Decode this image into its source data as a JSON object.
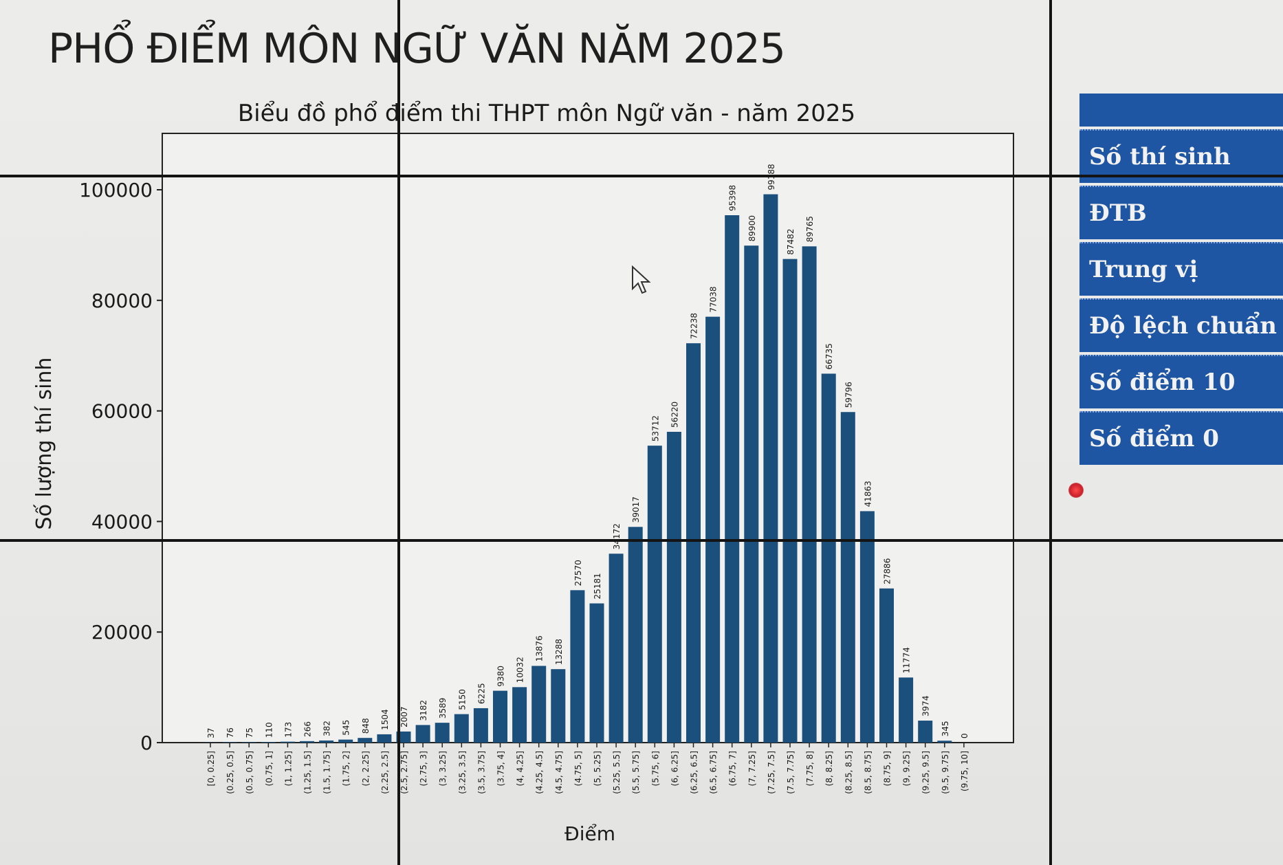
{
  "page": {
    "title": "PHỔ ĐIỂM MÔN NGỮ VĂN NĂM 2025"
  },
  "side_panel": {
    "items": [
      "Số thí sinh",
      "ĐTB",
      "Trung vị",
      "Độ lệch chuẩn",
      "Số điểm 10",
      "Số điểm 0"
    ]
  },
  "colors": {
    "bar": "#1b4f7c",
    "panel": "#1f56a3"
  },
  "chart_data": {
    "type": "bar",
    "title": "Biểu đồ phổ điểm thi THPT môn Ngữ văn - năm 2025",
    "xlabel": "Điểm",
    "ylabel": "Số lượng thí sinh",
    "ylim": [
      0,
      105000
    ],
    "yticks": [
      0,
      20000,
      40000,
      60000,
      80000,
      100000
    ],
    "grid": false,
    "categories": [
      "[0, 0.25]",
      "(0.25, 0.5]",
      "(0.5, 0.75]",
      "(0.75, 1]",
      "(1, 1.25]",
      "(1.25, 1.5]",
      "(1.5, 1.75]",
      "(1.75, 2]",
      "(2, 2.25]",
      "(2.25, 2.5]",
      "(2.5, 2.75]",
      "(2.75, 3]",
      "(3, 3.25]",
      "(3.25, 3.5]",
      "(3.5, 3.75]",
      "(3.75, 4]",
      "(4, 4.25]",
      "(4.25, 4.5]",
      "(4.5, 4.75]",
      "(4.75, 5]",
      "(5, 5.25]",
      "(5.25, 5.5]",
      "(5.5, 5.75]",
      "(5.75, 6]",
      "(6, 6.25]",
      "(6.25, 6.5]",
      "(6.5, 6.75]",
      "(6.75, 7]",
      "(7, 7.25]",
      "(7.25, 7.5]",
      "(7.5, 7.75]",
      "(7.75, 8]",
      "(8, 8.25]",
      "(8.25, 8.5]",
      "(8.5, 8.75]",
      "(8.75, 9]",
      "(9, 9.25]",
      "(9.25, 9.5]",
      "(9.5, 9.75]",
      "(9.75, 10]"
    ],
    "values": [
      37,
      76,
      75,
      110,
      173,
      266,
      382,
      545,
      848,
      1504,
      2007,
      3182,
      3589,
      5150,
      6225,
      9380,
      10032,
      13876,
      13288,
      27570,
      25181,
      34172,
      39017,
      53712,
      56220,
      72238,
      77038,
      95398,
      89900,
      99188,
      87482,
      89765,
      66735,
      59796,
      41863,
      27886,
      11774,
      3974,
      345,
      0
    ],
    "data_labels": [
      "37",
      "76",
      "75",
      "110",
      "173",
      "266",
      "382",
      "545",
      "848",
      "1504",
      "2007",
      "3182",
      "3589",
      "5150",
      "6225",
      "9380",
      "10032",
      "13876",
      "13288",
      "27570",
      "25181",
      "34172",
      "39017",
      "53712",
      "56220",
      "72238",
      "77038",
      "95398",
      "89900",
      "99188",
      "87482",
      "89765",
      "66735",
      "59796",
      "41863",
      "27886",
      "11774",
      "3974",
      "345",
      "0"
    ]
  }
}
